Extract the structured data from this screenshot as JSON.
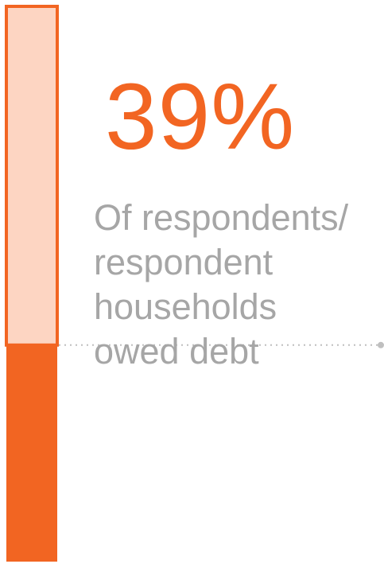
{
  "chart_data": {
    "type": "bar",
    "values": [
      39
    ],
    "ylim": [
      0,
      100
    ],
    "value_label": "39%",
    "caption_lines": [
      "Of respondents/",
      "respondent",
      "households",
      "owed debt"
    ]
  },
  "colors": {
    "accent": "#F26522",
    "bar_remainder": "#FDD5C2",
    "caption_text": "#A6A6A6",
    "dotted_line": "#BFBFBF"
  }
}
